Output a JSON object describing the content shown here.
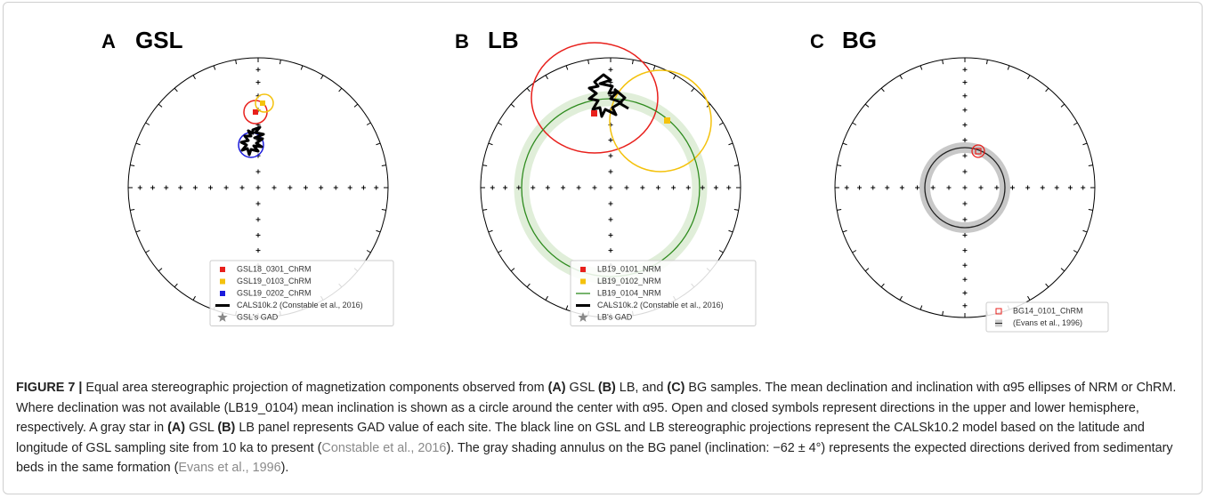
{
  "panels": [
    {
      "letter": "A",
      "name": "GSL",
      "legend": [
        "GSL18_0301_ChRM",
        "GSL19_0103_ChRM",
        "GSL19_0202_ChRM",
        "CALS10k.2 (Constable et al., 2016)",
        "GSL's GAD"
      ]
    },
    {
      "letter": "B",
      "name": "LB",
      "legend": [
        "LB19_0101_NRM",
        "LB19_0102_NRM",
        "LB19_0104_NRM",
        "CALS10k.2 (Constable et al., 2016)",
        "LB's GAD"
      ]
    },
    {
      "letter": "C",
      "name": "BG",
      "legend": [
        "BG14_0101_ChRM",
        "(Evans et al., 1996)"
      ]
    }
  ],
  "caption": [
    "FIGURE 7 |",
    " Equal area stereographic projection of magnetization components observed from ",
    "(A)",
    " GSL ",
    "(B)",
    " LB, and ",
    "(C)",
    " BG samples. The mean declination and inclination with α95 ellipses of NRM or ChRM. Where declination was not available (LB19_0104) mean inclination is shown as a circle around the center with α95. Open and closed symbols represent directions in the upper and lower hemisphere, respectively. A gray star in ",
    "(A)",
    " GSL ",
    "(B)",
    " LB panel represents GAD value of each site. The black line on GSL and LB stereographic projections represent the CALSk10.2 model based on the latitude and longitude of GSL sampling site from 10 ka to present (",
    "Constable et al., 2016",
    "). The gray shading annulus on the BG panel (inclination: −62 ± 4°) represents the expected directions derived from sedimentary beds in the same formation (",
    "Evans et al., 1996",
    ")."
  ]
}
